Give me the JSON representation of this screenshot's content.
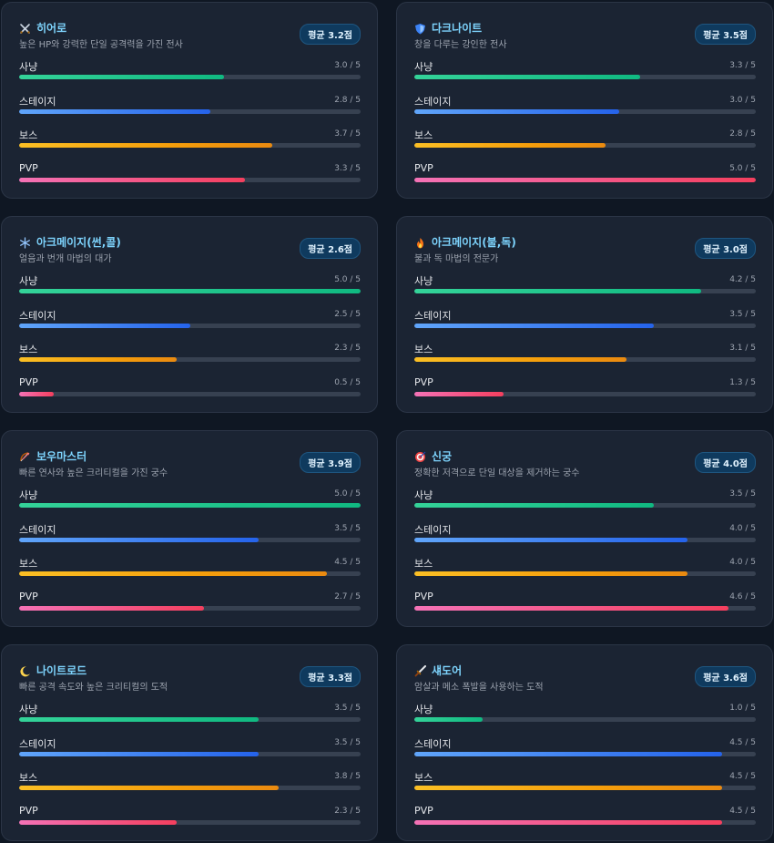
{
  "stat_labels": {
    "hunt": "사냥",
    "stage": "스테이지",
    "boss": "보스",
    "pvp": "PVP"
  },
  "colors": {
    "hunt": "#10b981",
    "stage": "#3b82f6",
    "boss": "#f59e0b",
    "pvp": "#f43f5e",
    "title": "#7dd3fc"
  },
  "max_score": 5,
  "classes": [
    {
      "name": "히어로",
      "icon": "swords-icon",
      "desc": "높은 HP와 강력한 단일 공격력을 가진 전사",
      "badge": "평균 3.2점",
      "stats": [
        {
          "value": "3.0 / 5",
          "score": 3.0
        },
        {
          "value": "2.8 / 5",
          "score": 2.8
        },
        {
          "value": "3.7 / 5",
          "score": 3.7
        },
        {
          "value": "3.3 / 5",
          "score": 3.3
        }
      ]
    },
    {
      "name": "다크나이트",
      "icon": "shield-icon",
      "desc": "창을 다루는 강인한 전사",
      "badge": "평균 3.5점",
      "stats": [
        {
          "value": "3.3 / 5",
          "score": 3.3
        },
        {
          "value": "3.0 / 5",
          "score": 3.0
        },
        {
          "value": "2.8 / 5",
          "score": 2.8
        },
        {
          "value": "5.0 / 5",
          "score": 5.0
        }
      ]
    },
    {
      "name": "아크메이지(썬,콜)",
      "icon": "snowflake-icon",
      "desc": "얼음과 번개 마법의 대가",
      "badge": "평균 2.6점",
      "stats": [
        {
          "value": "5.0 / 5",
          "score": 5.0
        },
        {
          "value": "2.5 / 5",
          "score": 2.5
        },
        {
          "value": "2.3 / 5",
          "score": 2.3
        },
        {
          "value": "0.5 / 5",
          "score": 0.5
        }
      ]
    },
    {
      "name": "아크메이지(불,독)",
      "icon": "fire-icon",
      "desc": "불과 독 마법의 전문가",
      "badge": "평균 3.0점",
      "stats": [
        {
          "value": "4.2 / 5",
          "score": 4.2
        },
        {
          "value": "3.5 / 5",
          "score": 3.5
        },
        {
          "value": "3.1 / 5",
          "score": 3.1
        },
        {
          "value": "1.3 / 5",
          "score": 1.3
        }
      ]
    },
    {
      "name": "보우마스터",
      "icon": "bow-icon",
      "desc": "빠른 연사와 높은 크리티컬을 가진 궁수",
      "badge": "평균 3.9점",
      "stats": [
        {
          "value": "5.0 / 5",
          "score": 5.0
        },
        {
          "value": "3.5 / 5",
          "score": 3.5
        },
        {
          "value": "4.5 / 5",
          "score": 4.5
        },
        {
          "value": "2.7 / 5",
          "score": 2.7
        }
      ]
    },
    {
      "name": "신궁",
      "icon": "target-icon",
      "desc": "정확한 저격으로 단일 대상을 제거하는 궁수",
      "badge": "평균 4.0점",
      "stats": [
        {
          "value": "3.5 / 5",
          "score": 3.5
        },
        {
          "value": "4.0 / 5",
          "score": 4.0
        },
        {
          "value": "4.0 / 5",
          "score": 4.0
        },
        {
          "value": "4.6 / 5",
          "score": 4.6
        }
      ]
    },
    {
      "name": "나이트로드",
      "icon": "moon-icon",
      "desc": "빠른 공격 속도와 높은 크리티컬의 도적",
      "badge": "평균 3.3점",
      "stats": [
        {
          "value": "3.5 / 5",
          "score": 3.5
        },
        {
          "value": "3.5 / 5",
          "score": 3.5
        },
        {
          "value": "3.8 / 5",
          "score": 3.8
        },
        {
          "value": "2.3 / 5",
          "score": 2.3
        }
      ]
    },
    {
      "name": "섀도어",
      "icon": "dagger-icon",
      "desc": "암살과 메소 폭발을 사용하는 도적",
      "badge": "평균 3.6점",
      "stats": [
        {
          "value": "1.0 / 5",
          "score": 1.0
        },
        {
          "value": "4.5 / 5",
          "score": 4.5
        },
        {
          "value": "4.5 / 5",
          "score": 4.5
        },
        {
          "value": "4.5 / 5",
          "score": 4.5
        }
      ]
    }
  ]
}
